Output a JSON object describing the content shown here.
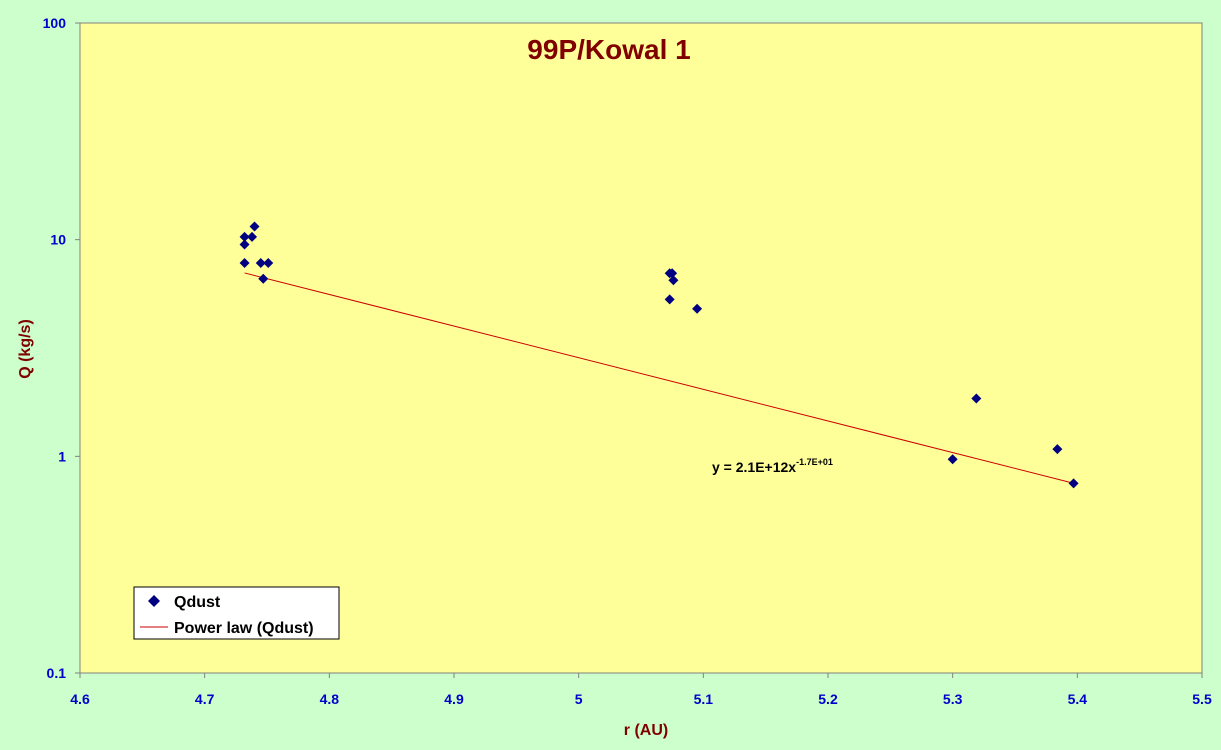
{
  "chart_data": {
    "type": "scatter",
    "title": "99P/Kowal 1",
    "xlabel": "r (AU)",
    "ylabel": "Q (kg/s)",
    "xlim": [
      4.6,
      5.5
    ],
    "ylim": [
      0.1,
      100
    ],
    "y_scale": "log",
    "x_ticks": [
      "4.6",
      "4.7",
      "4.8",
      "4.9",
      "5",
      "5.1",
      "5.2",
      "5.3",
      "5.4",
      "5.5"
    ],
    "y_ticks": [
      "0.1",
      "1",
      "10",
      "100"
    ],
    "grid": false,
    "legend_position": "bottom-left",
    "series": [
      {
        "name": "Qdust",
        "marker": "diamond",
        "color": "#000080",
        "points": [
          [
            4.732,
            10.3
          ],
          [
            4.732,
            9.5
          ],
          [
            4.732,
            7.8
          ],
          [
            4.738,
            10.3
          ],
          [
            4.74,
            11.5
          ],
          [
            4.745,
            7.8
          ],
          [
            4.747,
            6.6
          ],
          [
            4.751,
            7.8
          ],
          [
            5.073,
            7.0
          ],
          [
            5.075,
            7.0
          ],
          [
            5.076,
            6.5
          ],
          [
            5.073,
            5.3
          ],
          [
            5.095,
            4.8
          ],
          [
            5.3,
            0.97
          ],
          [
            5.319,
            1.85
          ],
          [
            5.384,
            1.08
          ],
          [
            5.397,
            0.75
          ]
        ]
      },
      {
        "name": "Power law (Qdust)",
        "type": "trendline",
        "color": "#cc0000",
        "coefficient": 2100000000000.0,
        "exponent": -17,
        "x_range": [
          4.732,
          5.397
        ]
      }
    ],
    "equation": {
      "text": "y = 2.1E+12x",
      "superscript": "-1.7E+01"
    }
  }
}
